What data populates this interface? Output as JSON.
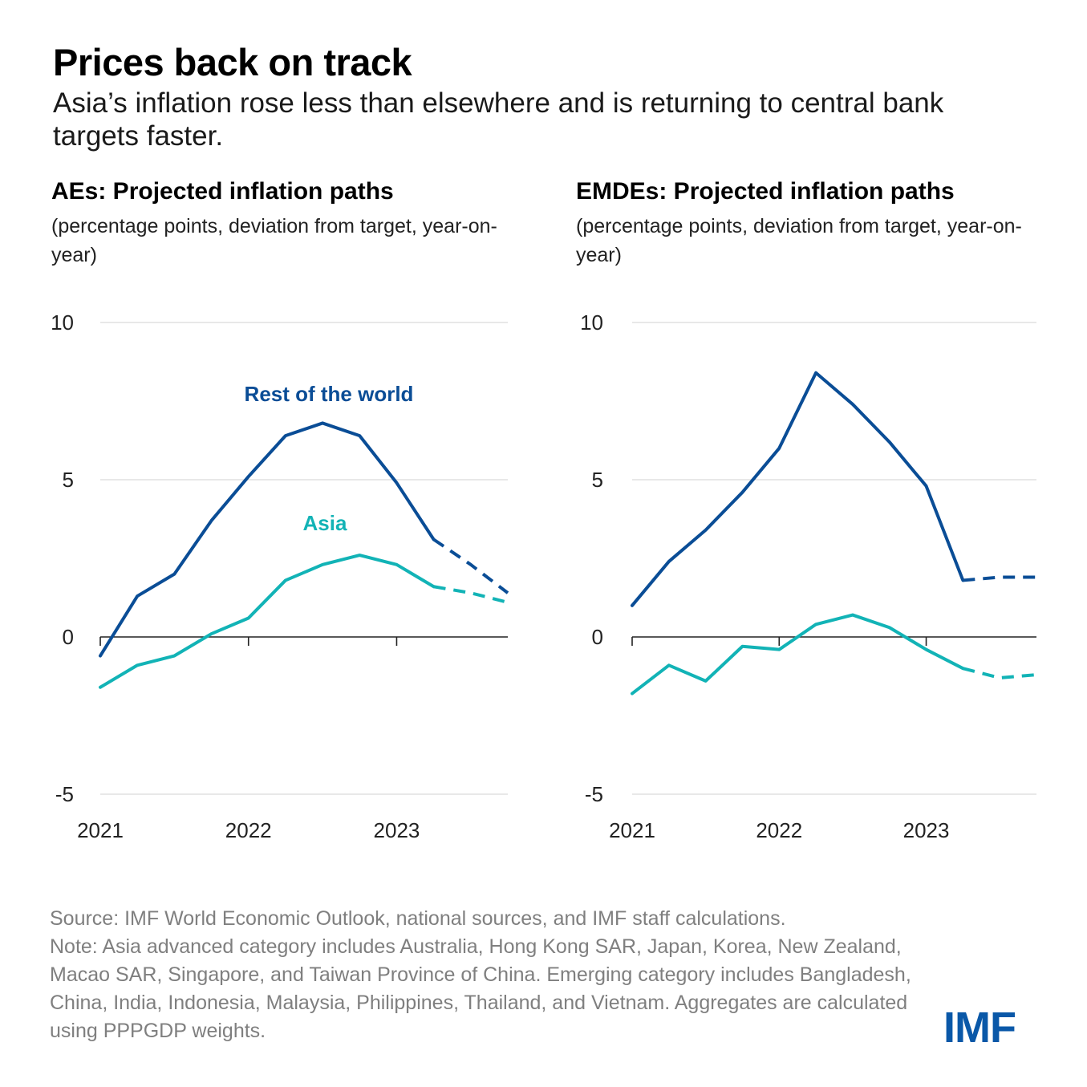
{
  "header": {
    "title": "Prices back on track",
    "subtitle": "Asia’s inflation rose less than elsewhere and is returning to central bank targets faster."
  },
  "panels": {
    "left": {
      "title": "AEs: Projected inflation paths",
      "subtitle": "(percentage points, deviation from target, year-on-year)"
    },
    "right": {
      "title": "EMDEs: Projected inflation paths",
      "subtitle": "(percentage points, deviation from target, year-on-year)"
    }
  },
  "chart_data": [
    {
      "type": "line",
      "title": "AEs: Projected inflation paths",
      "ylabel": "(percentage points, deviation from target, year-on-year)",
      "ylim": [
        -5,
        10
      ],
      "yticks": [
        "10",
        "5",
        "0",
        "-5"
      ],
      "xticks": [
        "2021",
        "2022",
        "2023"
      ],
      "x": [
        "2021Q1",
        "2021Q2",
        "2021Q3",
        "2021Q4",
        "2022Q1",
        "2022Q2",
        "2022Q3",
        "2022Q4",
        "2023Q1",
        "2023Q2",
        "2023Q3",
        "2023Q4"
      ],
      "projection_start_index": 9,
      "series": [
        {
          "name": "Rest of the world",
          "color": "#0a4d96",
          "values": [
            -0.6,
            1.3,
            2.0,
            3.7,
            5.1,
            6.4,
            6.8,
            6.4,
            4.9,
            3.1,
            2.3,
            1.4
          ]
        },
        {
          "name": "Asia",
          "color": "#12b3b6",
          "values": [
            -1.6,
            -0.9,
            -0.6,
            0.1,
            0.6,
            1.8,
            2.3,
            2.6,
            2.3,
            1.6,
            1.4,
            1.1
          ]
        }
      ]
    },
    {
      "type": "line",
      "title": "EMDEs: Projected inflation paths",
      "ylabel": "(percentage points, deviation from target, year-on-year)",
      "ylim": [
        -5,
        10
      ],
      "yticks": [
        "10",
        "5",
        "0",
        "-5"
      ],
      "xticks": [
        "2021",
        "2022",
        "2023"
      ],
      "x": [
        "2021Q1",
        "2021Q2",
        "2021Q3",
        "2021Q4",
        "2022Q1",
        "2022Q2",
        "2022Q3",
        "2022Q4",
        "2023Q1",
        "2023Q2",
        "2023Q3",
        "2023Q4"
      ],
      "projection_start_index": 9,
      "series": [
        {
          "name": "Rest of the world",
          "color": "#0a4d96",
          "values": [
            1.0,
            2.4,
            3.4,
            4.6,
            6.0,
            8.4,
            7.4,
            6.2,
            4.8,
            1.8,
            1.9,
            1.9
          ]
        },
        {
          "name": "Asia",
          "color": "#12b3b6",
          "values": [
            -1.8,
            -0.9,
            -1.4,
            -0.3,
            -0.4,
            0.4,
            0.7,
            0.3,
            -0.4,
            -1.0,
            -1.3,
            -1.2
          ]
        }
      ]
    }
  ],
  "footer": {
    "source": "Source: IMF World Economic Outlook, national sources, and IMF staff calculations.",
    "note": "Note: Asia advanced category includes Australia, Hong Kong SAR, Japan, Korea, New Zealand, Macao SAR, Singapore, and Taiwan Province of China. Emerging category includes Bangladesh, China, India, Indonesia, Malaysia, Philippines, Thailand, and Vietnam. Aggregates are calculated using PPPGDP weights."
  },
  "logo": "IMF"
}
